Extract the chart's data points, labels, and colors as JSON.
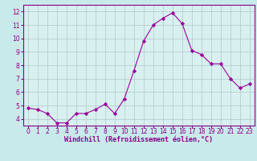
{
  "x": [
    0,
    1,
    2,
    3,
    4,
    5,
    6,
    7,
    8,
    9,
    10,
    11,
    12,
    13,
    14,
    15,
    16,
    17,
    18,
    19,
    20,
    21,
    22,
    23
  ],
  "y": [
    4.8,
    4.7,
    4.4,
    3.7,
    3.7,
    4.4,
    4.4,
    4.7,
    5.1,
    4.4,
    5.5,
    7.6,
    9.8,
    11.0,
    11.5,
    11.9,
    11.1,
    9.1,
    8.8,
    8.1,
    8.1,
    7.0,
    6.3,
    6.6
  ],
  "xlabel": "Windchill (Refroidissement éolien,°C)",
  "ylim": [
    3.5,
    12.5
  ],
  "xlim": [
    -0.5,
    23.5
  ],
  "line_color": "#990099",
  "marker": "D",
  "marker_size": 2.2,
  "bg_color": "#c8eaea",
  "grid_color": "#b0c8c8",
  "yticks": [
    4,
    5,
    6,
    7,
    8,
    9,
    10,
    11,
    12
  ],
  "xtick_labels": [
    "0",
    "1",
    "2",
    "3",
    "4",
    "5",
    "6",
    "7",
    "8",
    "9",
    "10",
    "11",
    "12",
    "13",
    "14",
    "15",
    "16",
    "17",
    "18",
    "19",
    "20",
    "21",
    "22",
    "23"
  ],
  "label_color": "#880088",
  "axis_bg": "#d8f0f0",
  "tick_fontsize": 5.5,
  "xlabel_fontsize": 6.0
}
